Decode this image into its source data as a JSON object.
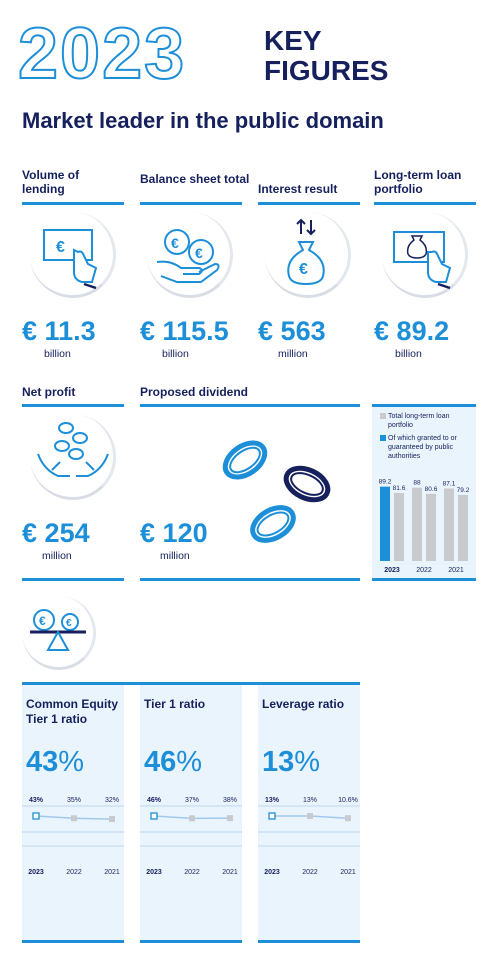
{
  "header": {
    "year": "2023",
    "title_line1": "KEY",
    "title_line2": "FIGURES",
    "subtitle": "Market leader in the public domain"
  },
  "kpis": [
    {
      "label": "Volume of lending",
      "currency": "€",
      "value": "11.3",
      "unit": "billion",
      "icon": "euro-note-hand-icon"
    },
    {
      "label": "Balance sheet total",
      "currency": "€",
      "value": "115.5",
      "unit": "billion",
      "icon": "coins-hand-icon"
    },
    {
      "label": "Interest result",
      "currency": "€",
      "value": "563",
      "unit": "million",
      "icon": "money-bag-icon"
    },
    {
      "label": "Long-term loan portfolio",
      "currency": "€",
      "value": "89.2",
      "unit": "billion",
      "icon": "money-bag-note-hand-icon"
    },
    {
      "label": "Net profit",
      "currency": "€",
      "value": "254",
      "unit": "million",
      "icon": "falling-coins-hands-icon"
    },
    {
      "label": "Proposed dividend",
      "currency": "€",
      "value": "120",
      "unit": "million",
      "icon": "coins-icon"
    }
  ],
  "colors": {
    "navy": "#15205c",
    "blue": "#1d8fd8",
    "grey": "#c8cace",
    "panel": "#eaf4fc"
  },
  "chart_data": [
    {
      "type": "bar",
      "categories": [
        "2023",
        "2022",
        "2021"
      ],
      "series": [
        {
          "name": "Total long-term loan portfolio",
          "values": [
            89.2,
            88,
            87.1
          ]
        },
        {
          "name": "Of which granted to or guaranteed by public authorities",
          "values": [
            81.6,
            80.6,
            79.2
          ]
        }
      ],
      "legend": [
        "Total long-term loan portfolio",
        "Of which granted to or guaranteed by public authorities"
      ],
      "value_labels": [
        [
          "89.2",
          "88",
          "87.1"
        ],
        [
          "81.6",
          "80.6",
          "79.2"
        ]
      ]
    },
    {
      "type": "line",
      "title": "Common Equity Tier 1 ratio",
      "value": "43",
      "unit": "%",
      "categories": [
        "2023",
        "2022",
        "2021"
      ],
      "values": [
        43,
        35,
        32
      ],
      "value_labels": [
        "43%",
        "35%",
        "32%"
      ]
    },
    {
      "type": "line",
      "title": "Tier 1 ratio",
      "value": "46",
      "unit": "%",
      "categories": [
        "2023",
        "2022",
        "2021"
      ],
      "values": [
        46,
        37,
        38
      ],
      "value_labels": [
        "46%",
        "37%",
        "38%"
      ]
    },
    {
      "type": "line",
      "title": "Leverage ratio",
      "value": "13",
      "unit": "%",
      "categories": [
        "2023",
        "2022",
        "2021"
      ],
      "values": [
        13,
        13,
        10.6
      ],
      "value_labels": [
        "13%",
        "13%",
        "10.6%"
      ]
    }
  ]
}
